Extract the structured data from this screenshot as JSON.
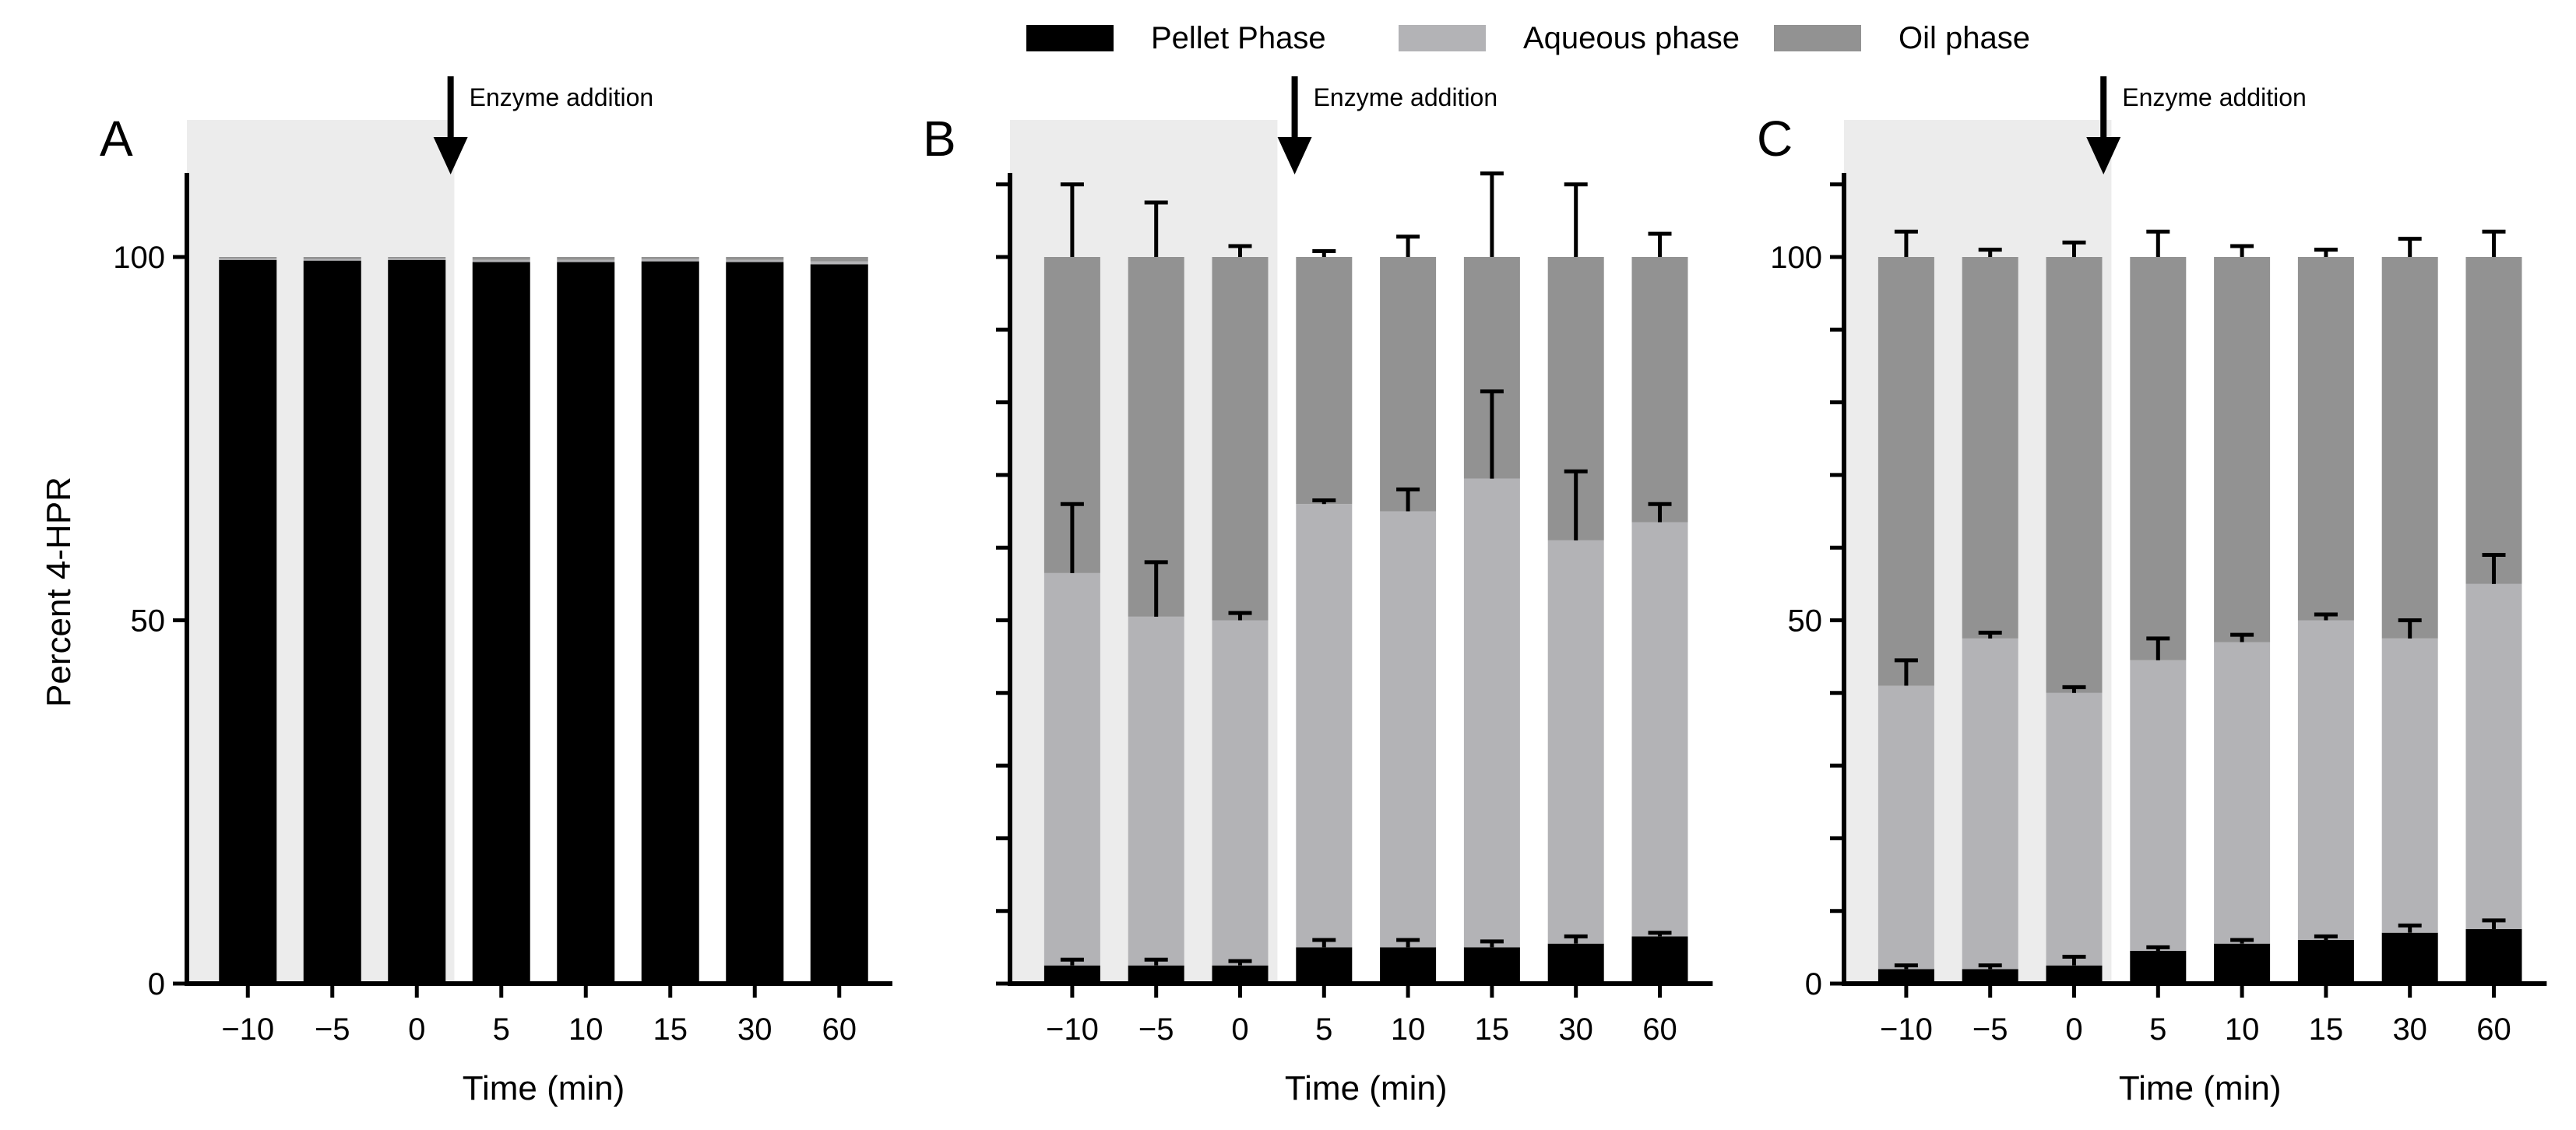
{
  "legend": {
    "placement": "top-center",
    "items": [
      {
        "label": "Pellet Phase",
        "color": "#000000"
      },
      {
        "label": "Aqueous phase",
        "color": "#b3b3b6"
      },
      {
        "label": "Oil phase",
        "color": "#929292"
      }
    ]
  },
  "colors": {
    "pellet": "#000000",
    "aqueous": "#b3b3b6",
    "oil": "#929292",
    "shade": "#ececec",
    "axis": "#000000"
  },
  "chart_data": [
    {
      "type": "stacked-bar",
      "panel_label": "A",
      "title": "",
      "xlabel": "Time (min)",
      "ylabel": "Percent 4-HPR",
      "ylim": [
        0,
        110
      ],
      "yticks": [
        0,
        50,
        100
      ],
      "minor_yticks": [],
      "grid": false,
      "categories": [
        "−10",
        "−5",
        "0",
        "5",
        "10",
        "15",
        "30",
        "60"
      ],
      "annotation": {
        "text": "Enzyme addition",
        "at_category_index": 2.4,
        "shaded_through_index": 2.5
      },
      "series": [
        {
          "name": "Pellet Phase",
          "values": [
            99.6,
            99.5,
            99.6,
            99.3,
            99.3,
            99.4,
            99.3,
            99.0
          ],
          "err": null
        },
        {
          "name": "Aqueous phase",
          "values": [
            0.2,
            0.2,
            0.2,
            0.3,
            0.3,
            0.3,
            0.3,
            0.4
          ],
          "err": null
        },
        {
          "name": "Oil phase",
          "values": [
            0.2,
            0.3,
            0.2,
            0.4,
            0.4,
            0.3,
            0.4,
            0.6
          ],
          "err": null
        }
      ]
    },
    {
      "type": "stacked-bar",
      "panel_label": "B",
      "title": "",
      "xlabel": "Time (min)",
      "ylabel": "",
      "ylim": [
        0,
        110
      ],
      "yticks": [],
      "minor_yticks": [
        0,
        10,
        20,
        30,
        40,
        50,
        60,
        70,
        80,
        90,
        100,
        110
      ],
      "grid": false,
      "categories": [
        "−10",
        "−5",
        "0",
        "5",
        "10",
        "15",
        "30",
        "60"
      ],
      "annotation": {
        "text": "Enzyme addition",
        "at_category_index": 2.65,
        "shaded_through_index": 2.5
      },
      "series": [
        {
          "name": "Pellet Phase",
          "values": [
            2.5,
            2.5,
            2.5,
            5.0,
            5.0,
            5.0,
            5.5,
            6.5
          ],
          "err": [
            0.8,
            0.8,
            0.6,
            1.0,
            1.0,
            0.8,
            1.0,
            0.5
          ]
        },
        {
          "name": "Aqueous phase",
          "values": [
            54.0,
            48.0,
            47.5,
            61.0,
            60.0,
            64.5,
            55.5,
            57.0
          ],
          "err": [
            9.5,
            7.5,
            1.0,
            0.5,
            3.0,
            12.0,
            9.5,
            2.5
          ]
        },
        {
          "name": "Oil phase",
          "values": [
            43.5,
            49.5,
            50.0,
            34.0,
            35.0,
            30.5,
            39.0,
            36.5
          ],
          "err": [
            10.0,
            7.5,
            1.5,
            0.8,
            2.8,
            11.5,
            10.0,
            3.2
          ]
        }
      ]
    },
    {
      "type": "stacked-bar",
      "panel_label": "C",
      "title": "",
      "xlabel": "Time (min)",
      "ylabel": "",
      "ylim": [
        0,
        110
      ],
      "yticks": [
        0,
        50,
        100
      ],
      "minor_yticks": [
        10,
        20,
        30,
        40,
        60,
        70,
        80,
        90,
        110
      ],
      "grid": false,
      "categories": [
        "−10",
        "−5",
        "0",
        "5",
        "10",
        "15",
        "30",
        "60"
      ],
      "annotation": {
        "text": "Enzyme addition",
        "at_category_index": 2.35,
        "shaded_through_index": 2.5
      },
      "series": [
        {
          "name": "Pellet Phase",
          "values": [
            2.0,
            2.0,
            2.5,
            4.5,
            5.5,
            6.0,
            7.0,
            7.5
          ],
          "err": [
            0.5,
            0.5,
            1.2,
            0.5,
            0.5,
            0.5,
            1.0,
            1.2
          ]
        },
        {
          "name": "Aqueous phase",
          "values": [
            39.0,
            45.5,
            37.5,
            40.0,
            41.5,
            44.0,
            40.5,
            47.5
          ],
          "err": [
            3.5,
            0.8,
            0.8,
            3.0,
            1.0,
            0.8,
            2.5,
            4.0
          ]
        },
        {
          "name": "Oil phase",
          "values": [
            59.0,
            52.5,
            60.0,
            55.5,
            53.0,
            50.0,
            52.5,
            45.0
          ],
          "err": [
            3.5,
            1.0,
            2.0,
            3.5,
            1.5,
            1.0,
            2.5,
            3.5
          ]
        }
      ]
    }
  ]
}
